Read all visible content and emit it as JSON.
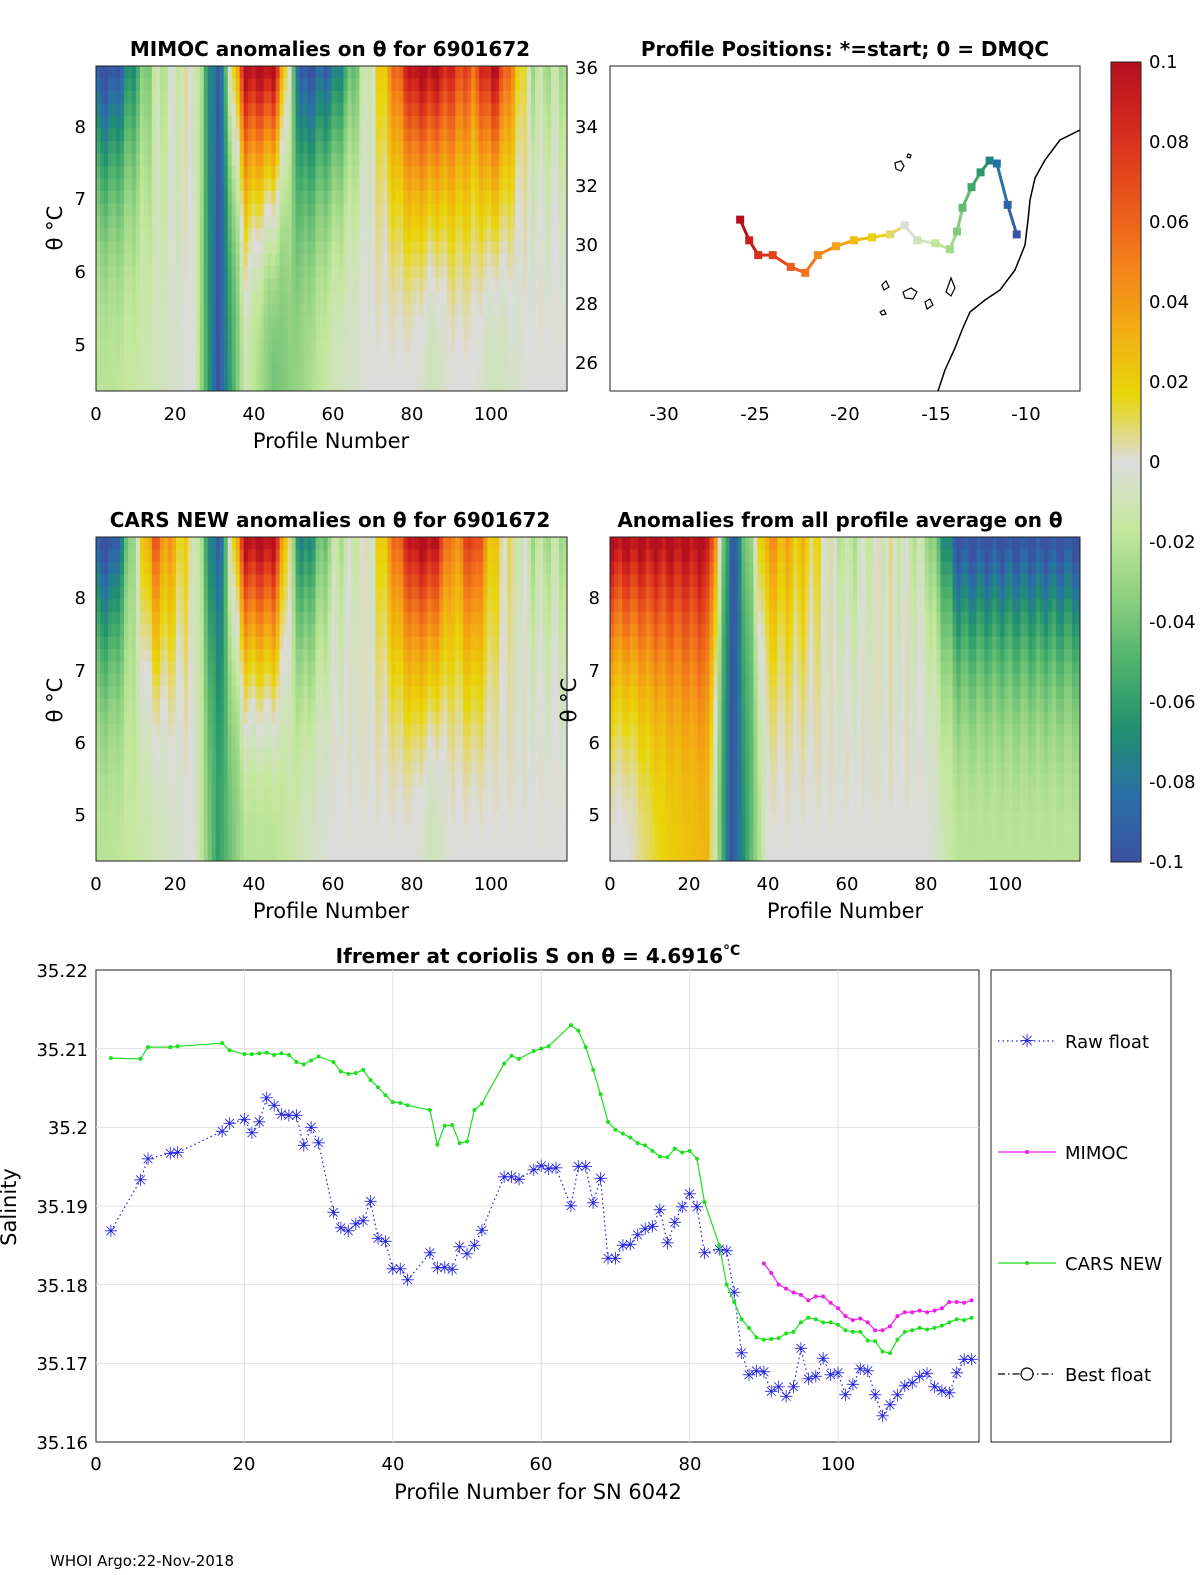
{
  "footer": "WHOI Argo:22-Nov-2018",
  "colorbar": {
    "ticks": [
      "0.1",
      "0.08",
      "0.06",
      "0.04",
      "0.02",
      "0",
      "-0.02",
      "-0.04",
      "-0.06",
      "-0.08",
      "-0.1"
    ],
    "colors": [
      "#b40f1e",
      "#d62a1e",
      "#e8531c",
      "#f47f1a",
      "#f2ac12",
      "#e8d60a",
      "#dcdcdc",
      "#c4e89c",
      "#8ed080",
      "#4fb36c",
      "#21906f",
      "#2a6fa8",
      "#3a52a0"
    ]
  },
  "panels": {
    "mimoc": {
      "title": "MIMOC anomalies on θ  for 6901672",
      "ylabel": "θ °C",
      "xlabel": "Profile Number",
      "xticks": [
        "0",
        "20",
        "40",
        "60",
        "80",
        "100"
      ],
      "yticks": [
        "8",
        "7",
        "6",
        "5"
      ]
    },
    "positions": {
      "title": "Profile Positions: *=start; 0 = DMQC",
      "xticks": [
        "-30",
        "-25",
        "-20",
        "-15",
        "-10"
      ],
      "yticks": [
        "36",
        "34",
        "32",
        "30",
        "28",
        "26"
      ]
    },
    "cars": {
      "title": "CARS NEW anomalies on θ for 6901672",
      "ylabel": "θ °C",
      "xlabel": "Profile Number",
      "xticks": [
        "0",
        "20",
        "40",
        "60",
        "80",
        "100"
      ],
      "yticks": [
        "8",
        "7",
        "6",
        "5"
      ]
    },
    "allavg": {
      "title": "Anomalies from all profile average on θ",
      "ylabel": "θ °C",
      "xlabel": "Profile Number",
      "xticks": [
        "0",
        "20",
        "40",
        "60",
        "80",
        "100"
      ],
      "yticks": [
        "8",
        "7",
        "6",
        "5"
      ]
    }
  },
  "chart_data": [
    {
      "type": "heatmap",
      "title": "MIMOC anomalies on θ  for 6901672",
      "xlabel": "Profile Number",
      "ylabel": "θ °C",
      "xlim": [
        0,
        118
      ],
      "ylim": [
        4.35,
        8.85
      ],
      "color_range": [
        -0.1,
        0.1
      ],
      "profiles": [
        5,
        15,
        25,
        31,
        38,
        45,
        52,
        60,
        70,
        80,
        85,
        90,
        95,
        100,
        110
      ],
      "top_anomaly": [
        -0.1,
        -0.02,
        0.0,
        -0.1,
        0.1,
        0.1,
        -0.1,
        -0.08,
        0.0,
        0.1,
        0.1,
        0.08,
        0.06,
        0.1,
        -0.02
      ],
      "deep_anomaly": [
        -0.02,
        -0.01,
        0.0,
        -0.1,
        -0.01,
        -0.04,
        -0.03,
        -0.01,
        0.0,
        0.0,
        -0.01,
        0.0,
        0.0,
        -0.01,
        0.0
      ]
    },
    {
      "type": "scatter",
      "title": "Profile Positions: *=start; 0 = DMQC",
      "xlim": [
        -33,
        -7
      ],
      "ylim": [
        25,
        36
      ],
      "color_by": "profile index",
      "lon": [
        -25.8,
        -25.3,
        -24.8,
        -24.0,
        -23.0,
        -22.2,
        -21.5,
        -20.5,
        -19.5,
        -18.5,
        -17.5,
        -16.7,
        -16.0,
        -15.0,
        -14.2,
        -13.8,
        -13.5,
        -13.0,
        -12.5,
        -12.0,
        -11.6,
        -11.0,
        -10.5
      ],
      "lat": [
        30.8,
        30.1,
        29.6,
        29.6,
        29.2,
        29.0,
        29.6,
        29.9,
        30.1,
        30.2,
        30.3,
        30.6,
        30.1,
        30.0,
        29.8,
        30.4,
        31.2,
        31.9,
        32.4,
        32.8,
        32.7,
        31.3,
        30.3
      ]
    },
    {
      "type": "heatmap",
      "title": "CARS NEW anomalies on θ for 6901672",
      "xlabel": "Profile Number",
      "ylabel": "θ °C",
      "xlim": [
        0,
        118
      ],
      "ylim": [
        4.35,
        8.85
      ],
      "color_range": [
        -0.1,
        0.1
      ],
      "profiles": [
        5,
        15,
        25,
        31,
        38,
        45,
        52,
        60,
        70,
        80,
        85,
        90,
        95,
        100,
        110
      ],
      "top_anomaly": [
        -0.1,
        0.06,
        0.0,
        -0.1,
        0.1,
        0.1,
        -0.08,
        -0.02,
        0.0,
        0.1,
        0.1,
        0.04,
        0.08,
        0.02,
        -0.02
      ],
      "deep_anomaly": [
        -0.02,
        -0.01,
        0.0,
        -0.06,
        -0.02,
        -0.02,
        -0.01,
        0.0,
        0.0,
        0.0,
        -0.01,
        0.0,
        0.0,
        0.0,
        0.0
      ]
    },
    {
      "type": "heatmap",
      "title": "Anomalies from all profile average on θ",
      "xlabel": "Profile Number",
      "ylabel": "θ °C",
      "xlim": [
        0,
        118
      ],
      "ylim": [
        4.35,
        8.85
      ],
      "color_range": [
        -0.1,
        0.1
      ],
      "profiles": [
        5,
        15,
        25,
        31,
        40,
        50,
        60,
        70,
        80,
        88,
        95,
        105,
        115
      ],
      "top_anomaly": [
        0.1,
        0.1,
        0.1,
        -0.1,
        0.04,
        0.02,
        -0.02,
        0.0,
        -0.02,
        -0.1,
        -0.1,
        -0.1,
        -0.1
      ],
      "deep_anomaly": [
        0.0,
        0.02,
        0.03,
        -0.1,
        0.0,
        0.0,
        0.0,
        0.0,
        0.0,
        -0.02,
        -0.02,
        -0.02,
        -0.02
      ]
    },
    {
      "type": "line",
      "title": "Ifremer at coriolis S on θ = 4.6916°C",
      "title_main": "Ifremer at coriolis S on θ = 4.6916",
      "title_unit": "°C",
      "xlabel": "Profile Number for SN 6042",
      "ylabel": "Salinity",
      "xlim": [
        0,
        119
      ],
      "ylim": [
        35.16,
        35.22
      ],
      "xticks": [
        "0",
        "20",
        "40",
        "60",
        "80",
        "100"
      ],
      "yticks": [
        "35.22",
        "35.21",
        "35.2",
        "35.19",
        "35.18",
        "35.17",
        "35.16"
      ],
      "grid": true,
      "legend_position": "right, outside",
      "series": [
        {
          "name": "Raw float",
          "color": "#1f1fe0",
          "marker": "*",
          "linestyle": "dotted",
          "x": [
            2,
            6,
            7,
            10,
            11,
            17,
            18,
            20,
            21,
            22,
            23,
            24,
            25,
            26,
            27,
            28,
            29,
            30,
            32,
            33,
            34,
            35,
            36,
            37,
            38,
            39,
            40,
            41,
            42,
            45,
            46,
            47,
            48,
            49,
            50,
            51,
            52,
            55,
            56,
            57,
            59,
            60,
            61,
            62,
            64,
            65,
            66,
            67,
            68,
            69,
            70,
            71,
            72,
            73,
            74,
            75,
            76,
            77,
            78,
            79,
            80,
            81,
            82,
            84,
            85,
            86,
            87,
            88,
            89,
            90,
            91,
            92,
            93,
            94,
            95,
            96,
            97,
            98,
            99,
            100,
            101,
            102,
            103,
            104,
            105,
            106,
            107,
            108,
            109,
            110,
            111,
            112,
            113,
            114,
            115,
            116,
            117,
            118
          ],
          "y": [
            35.1868,
            35.1933,
            35.196,
            35.1967,
            35.1968,
            35.1995,
            35.2005,
            35.201,
            35.1993,
            35.2007,
            35.2037,
            35.2028,
            35.2016,
            35.2015,
            35.2015,
            35.1977,
            35.2,
            35.198,
            35.1892,
            35.1872,
            35.1868,
            35.1877,
            35.1881,
            35.1906,
            35.1859,
            35.1855,
            35.182,
            35.182,
            35.1806,
            35.184,
            35.1821,
            35.1822,
            35.1819,
            35.1848,
            35.1839,
            35.185,
            35.1869,
            35.1937,
            35.1937,
            35.1934,
            35.1946,
            35.1951,
            35.1947,
            35.1948,
            35.19,
            35.195,
            35.195,
            35.1904,
            35.1935,
            35.1833,
            35.1833,
            35.185,
            35.1851,
            35.1863,
            35.1871,
            35.1874,
            35.1895,
            35.1853,
            35.1879,
            35.1899,
            35.1915,
            35.1899,
            35.184,
            35.1845,
            35.1843,
            35.179,
            35.1713,
            35.1685,
            35.169,
            35.1689,
            35.1664,
            35.167,
            35.1658,
            35.167,
            35.1719,
            35.168,
            35.1683,
            35.1706,
            35.1685,
            35.1688,
            35.166,
            35.1673,
            35.1693,
            35.169,
            35.166,
            35.1633,
            35.1647,
            35.166,
            35.1671,
            35.1675,
            35.1683,
            35.1687,
            35.167,
            35.1665,
            35.1662,
            35.1688,
            35.1705,
            35.1705
          ]
        },
        {
          "name": "MIMOC",
          "color": "#ee1ee6",
          "marker": ".",
          "linestyle": "solid",
          "x": [
            90,
            91,
            92,
            93,
            94,
            95,
            96,
            97,
            98,
            99,
            100,
            101,
            102,
            103,
            104,
            105,
            106,
            107,
            108,
            109,
            110,
            111,
            112,
            113,
            114,
            115,
            116,
            117,
            118
          ],
          "y": [
            35.1827,
            35.1815,
            35.18,
            35.1795,
            35.179,
            35.1787,
            35.178,
            35.1785,
            35.1785,
            35.1777,
            35.177,
            35.176,
            35.1755,
            35.1757,
            35.1752,
            35.1742,
            35.1742,
            35.1747,
            35.176,
            35.1765,
            35.1765,
            35.1767,
            35.1765,
            35.1767,
            35.177,
            35.1778,
            35.1778,
            35.1777,
            35.178
          ]
        },
        {
          "name": "CARS NEW",
          "color": "#1ee01e",
          "marker": ".",
          "linestyle": "solid",
          "x": [
            2,
            6,
            7,
            10,
            11,
            17,
            18,
            20,
            21,
            22,
            23,
            24,
            25,
            26,
            27,
            28,
            29,
            30,
            32,
            33,
            34,
            35,
            36,
            37,
            38,
            39,
            40,
            41,
            42,
            45,
            46,
            47,
            48,
            49,
            50,
            51,
            52,
            55,
            56,
            57,
            59,
            60,
            61,
            64,
            65,
            66,
            67,
            68,
            69,
            70,
            71,
            72,
            73,
            74,
            75,
            76,
            77,
            78,
            79,
            80,
            81,
            82,
            84,
            85,
            86,
            87,
            88,
            89,
            90,
            91,
            92,
            93,
            94,
            95,
            96,
            97,
            98,
            99,
            100,
            101,
            102,
            103,
            104,
            105,
            106,
            107,
            108,
            109,
            110,
            111,
            112,
            113,
            114,
            115,
            116,
            117,
            118
          ],
          "y": [
            35.2088,
            35.2087,
            35.2102,
            35.2102,
            35.2103,
            35.2107,
            35.2098,
            35.2093,
            35.2093,
            35.2094,
            35.2095,
            35.2092,
            35.2094,
            35.2092,
            35.2083,
            35.208,
            35.2085,
            35.209,
            35.2083,
            35.2071,
            35.2068,
            35.2069,
            35.2073,
            35.206,
            35.2051,
            35.2041,
            35.2032,
            35.2031,
            35.2028,
            35.2022,
            35.1978,
            35.2002,
            35.2003,
            35.198,
            35.1982,
            35.2022,
            35.203,
            35.2081,
            35.2091,
            35.2087,
            35.2097,
            35.21,
            35.2103,
            35.213,
            35.2123,
            35.2102,
            35.2073,
            35.2042,
            35.2007,
            35.1997,
            35.1992,
            35.1987,
            35.198,
            35.1977,
            35.197,
            35.1963,
            35.1962,
            35.1973,
            35.1968,
            35.197,
            35.196,
            35.1905,
            35.185,
            35.18,
            35.1778,
            35.1756,
            35.1745,
            35.1733,
            35.173,
            35.1731,
            35.1732,
            35.1738,
            35.174,
            35.1752,
            35.1758,
            35.1756,
            35.1752,
            35.1752,
            35.1749,
            35.1742,
            35.174,
            35.174,
            35.1729,
            35.1728,
            35.1715,
            35.1713,
            35.173,
            35.174,
            35.1742,
            35.1745,
            35.1743,
            35.1745,
            35.1748,
            35.1752,
            35.1756,
            35.1755,
            35.1758
          ]
        },
        {
          "name": "Best float",
          "color": "#000000",
          "marker": "o",
          "linestyle": "dashdot",
          "x": [],
          "y": []
        }
      ]
    }
  ]
}
